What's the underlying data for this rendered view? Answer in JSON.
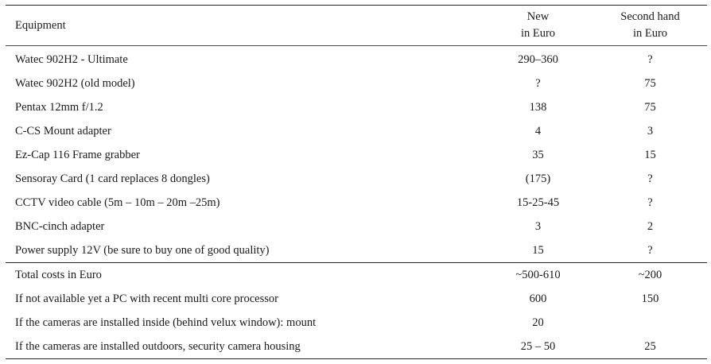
{
  "header": {
    "equipment": "Equipment",
    "new_line1": "New",
    "new_line2": "in Euro",
    "second_line1": "Second hand",
    "second_line2": "in Euro"
  },
  "items": [
    {
      "name": "Watec 902H2 - Ultimate",
      "new": "290–360",
      "second": "?"
    },
    {
      "name": "Watec 902H2 (old model)",
      "new": "?",
      "second": "75"
    },
    {
      "name": "Pentax 12mm f/1.2",
      "new": "138",
      "second": "75"
    },
    {
      "name": "C-CS Mount adapter",
      "new": "4",
      "second": "3"
    },
    {
      "name": "Ez-Cap 116 Frame grabber",
      "new": "35",
      "second": "15"
    },
    {
      "name": "Sensoray Card (1 card replaces 8 dongles)",
      "new": "(175)",
      "second": "?"
    },
    {
      "name": "CCTV video cable (5m – 10m – 20m –25m)",
      "new": "15-25-45",
      "second": "?"
    },
    {
      "name": "BNC-cinch adapter",
      "new": "3",
      "second": "2"
    },
    {
      "name": "Power supply 12V (be sure to buy one of good quality)",
      "new": "15",
      "second": "?"
    }
  ],
  "totals": [
    {
      "name": "Total costs in Euro",
      "new": "~500-610",
      "second": "~200"
    },
    {
      "name": "If not available yet a PC with recent multi core processor",
      "new": "600",
      "second": "150"
    },
    {
      "name": "If the cameras are installed inside (behind velux window): mount",
      "new": "20",
      "second": ""
    },
    {
      "name": "If the cameras are installed outdoors, security camera housing",
      "new": "25 – 50",
      "second": "25"
    }
  ]
}
